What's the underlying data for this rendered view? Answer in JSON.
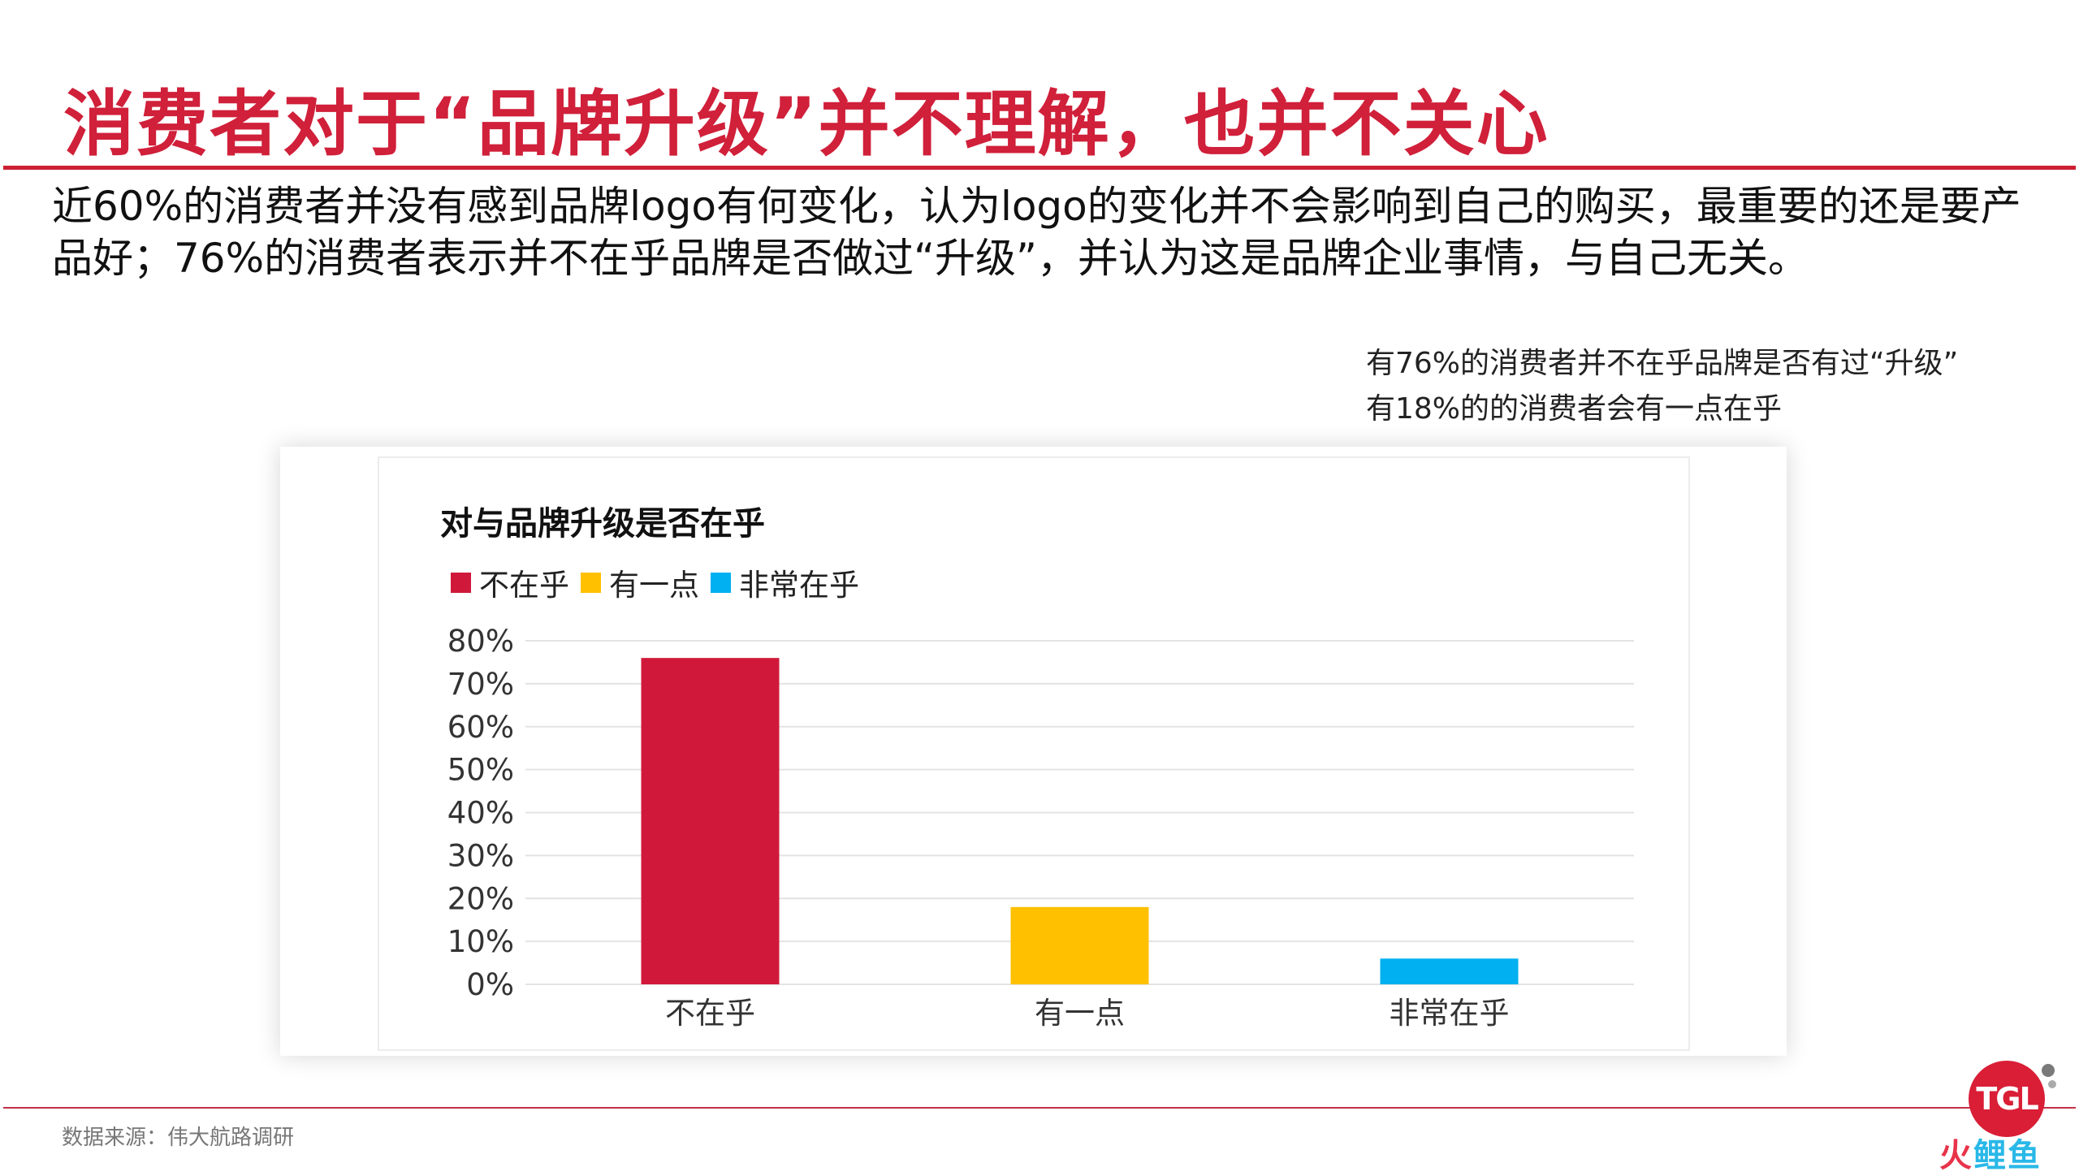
{
  "slide": {
    "title": "消费者对于“品牌升级”并不理解，也并不关心",
    "intro": "近60%的消费者并没有感到品牌logo有何变化，认为logo的变化并不会影响到自己的购买，最重要的还是要产品好；76%的消费者表示并不在乎品牌是否做过“升级”，并认为这是品牌企业事情，与自己无关。",
    "note_lines": [
      "有76%的消费者并不在乎品牌是否有过“升级”",
      "有18%的的消费者会有一点在乎"
    ],
    "source": "数据来源：伟大航路调研"
  },
  "logo": {
    "badge": "TGL",
    "fire": "火",
    "fish": "鲤鱼",
    "colors": {
      "badge": "#d91e36",
      "fire": "#e8334a",
      "fish": "#29b8e8"
    }
  },
  "chart_data": {
    "type": "bar",
    "title": "对与品牌升级是否在乎",
    "categories": [
      "不在乎",
      "有一点",
      "非常在乎"
    ],
    "series": [
      {
        "name": "不在乎",
        "values": [
          76,
          null,
          null
        ],
        "color": "#d0193a"
      },
      {
        "name": "有一点",
        "values": [
          null,
          18,
          null
        ],
        "color": "#ffc000"
      },
      {
        "name": "非常在乎",
        "values": [
          null,
          null,
          6
        ],
        "color": "#00b0f0"
      }
    ],
    "y_ticks": [
      "0%",
      "10%",
      "20%",
      "30%",
      "40%",
      "50%",
      "60%",
      "70%",
      "80%"
    ],
    "ylim": [
      0,
      80
    ],
    "xlabel": "",
    "ylabel": "",
    "grid": true,
    "legend_position": "top-left"
  }
}
